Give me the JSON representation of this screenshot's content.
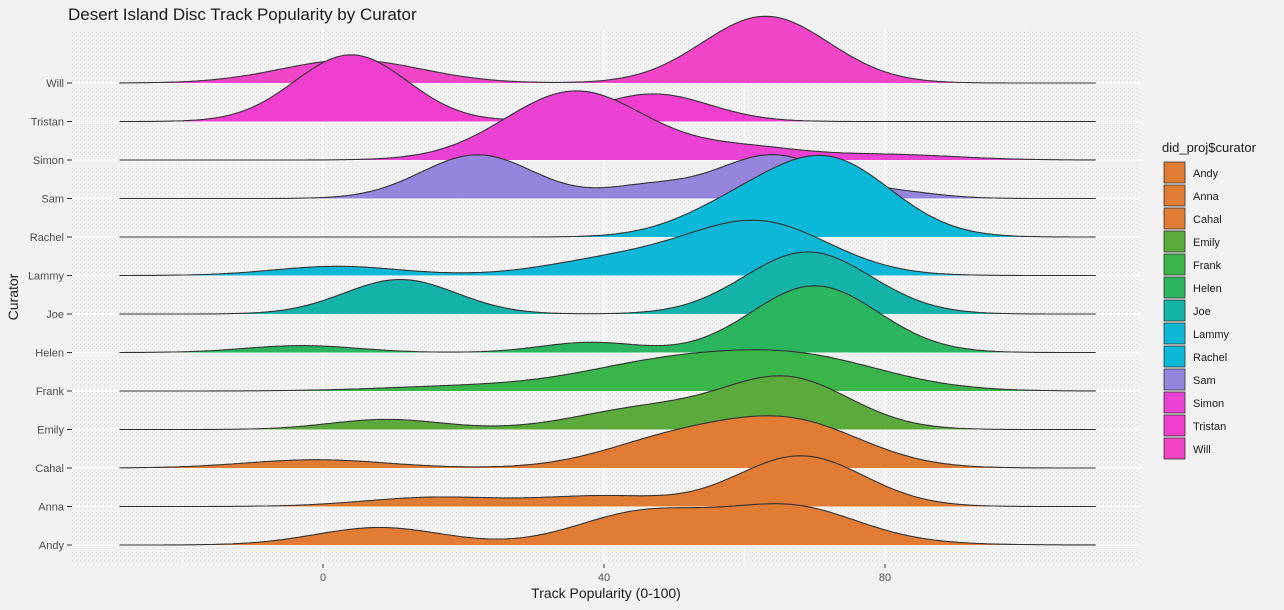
{
  "chart_data": {
    "type": "area",
    "title": "Desert Island Disc Track Popularity by Curator",
    "xlabel": "Track Popularity (0-100)",
    "ylabel": "Curator",
    "x_ticks": [
      0,
      40,
      80
    ],
    "x_range": [
      -30,
      110
    ],
    "grid": true,
    "legend": {
      "title": "did_proj$curator",
      "position": "right"
    },
    "series": [
      {
        "name": "Andy",
        "color": "#e07c33",
        "peaks": [
          [
            8,
            9,
            0.38
          ],
          [
            45,
            9,
            0.55
          ],
          [
            67,
            9,
            0.58
          ],
          [
            60,
            15,
            0.3
          ]
        ]
      },
      {
        "name": "Anna",
        "color": "#e07c33",
        "peaks": [
          [
            16,
            10,
            0.2
          ],
          [
            40,
            9,
            0.22
          ],
          [
            68,
            9,
            1.1
          ]
        ]
      },
      {
        "name": "Cahal",
        "color": "#e07c33",
        "peaks": [
          [
            -1,
            10,
            0.18
          ],
          [
            50,
            10,
            0.6
          ],
          [
            67,
            10,
            0.95
          ]
        ]
      },
      {
        "name": "Emily",
        "color": "#5aaa3c",
        "peaks": [
          [
            9,
            8,
            0.22
          ],
          [
            46,
            10,
            0.45
          ],
          [
            66,
            9,
            1.1
          ]
        ]
      },
      {
        "name": "Frank",
        "color": "#39b54a",
        "peaks": [
          [
            20,
            12,
            0.1
          ],
          [
            48,
            12,
            0.55
          ],
          [
            68,
            12,
            0.7
          ]
        ]
      },
      {
        "name": "Helen",
        "color": "#2bb55f",
        "peaks": [
          [
            -3,
            8,
            0.15
          ],
          [
            38,
            7,
            0.22
          ],
          [
            70,
            9,
            1.45
          ]
        ]
      },
      {
        "name": "Joe",
        "color": "#14b3a8",
        "peaks": [
          [
            11,
            8,
            0.75
          ],
          [
            69,
            9,
            1.35
          ]
        ]
      },
      {
        "name": "Lammy",
        "color": "#0fb7d6",
        "peaks": [
          [
            2,
            9,
            0.2
          ],
          [
            42,
            10,
            0.35
          ],
          [
            62,
            10,
            1.15
          ]
        ]
      },
      {
        "name": "Rachel",
        "color": "#0cb8d8",
        "peaks": [
          [
            58,
            8,
            0.5
          ],
          [
            72,
            9,
            1.65
          ]
        ]
      },
      {
        "name": "Sam",
        "color": "#9585dd",
        "peaks": [
          [
            22,
            8,
            0.95
          ],
          [
            46,
            6,
            0.25
          ],
          [
            64,
            8,
            0.95
          ],
          [
            82,
            6,
            0.12
          ]
        ]
      },
      {
        "name": "Simon",
        "color": "#ea42d2",
        "peaks": [
          [
            36,
            10,
            1.5
          ],
          [
            60,
            8,
            0.25
          ],
          [
            80,
            10,
            0.12
          ]
        ]
      },
      {
        "name": "Tristan",
        "color": "#f03fcf",
        "peaks": [
          [
            4,
            8,
            1.45
          ],
          [
            47,
            8,
            0.6
          ]
        ]
      },
      {
        "name": "Will",
        "color": "#f345c8",
        "peaks": [
          [
            4,
            10,
            0.5
          ],
          [
            63,
            9,
            1.45
          ]
        ]
      }
    ]
  }
}
